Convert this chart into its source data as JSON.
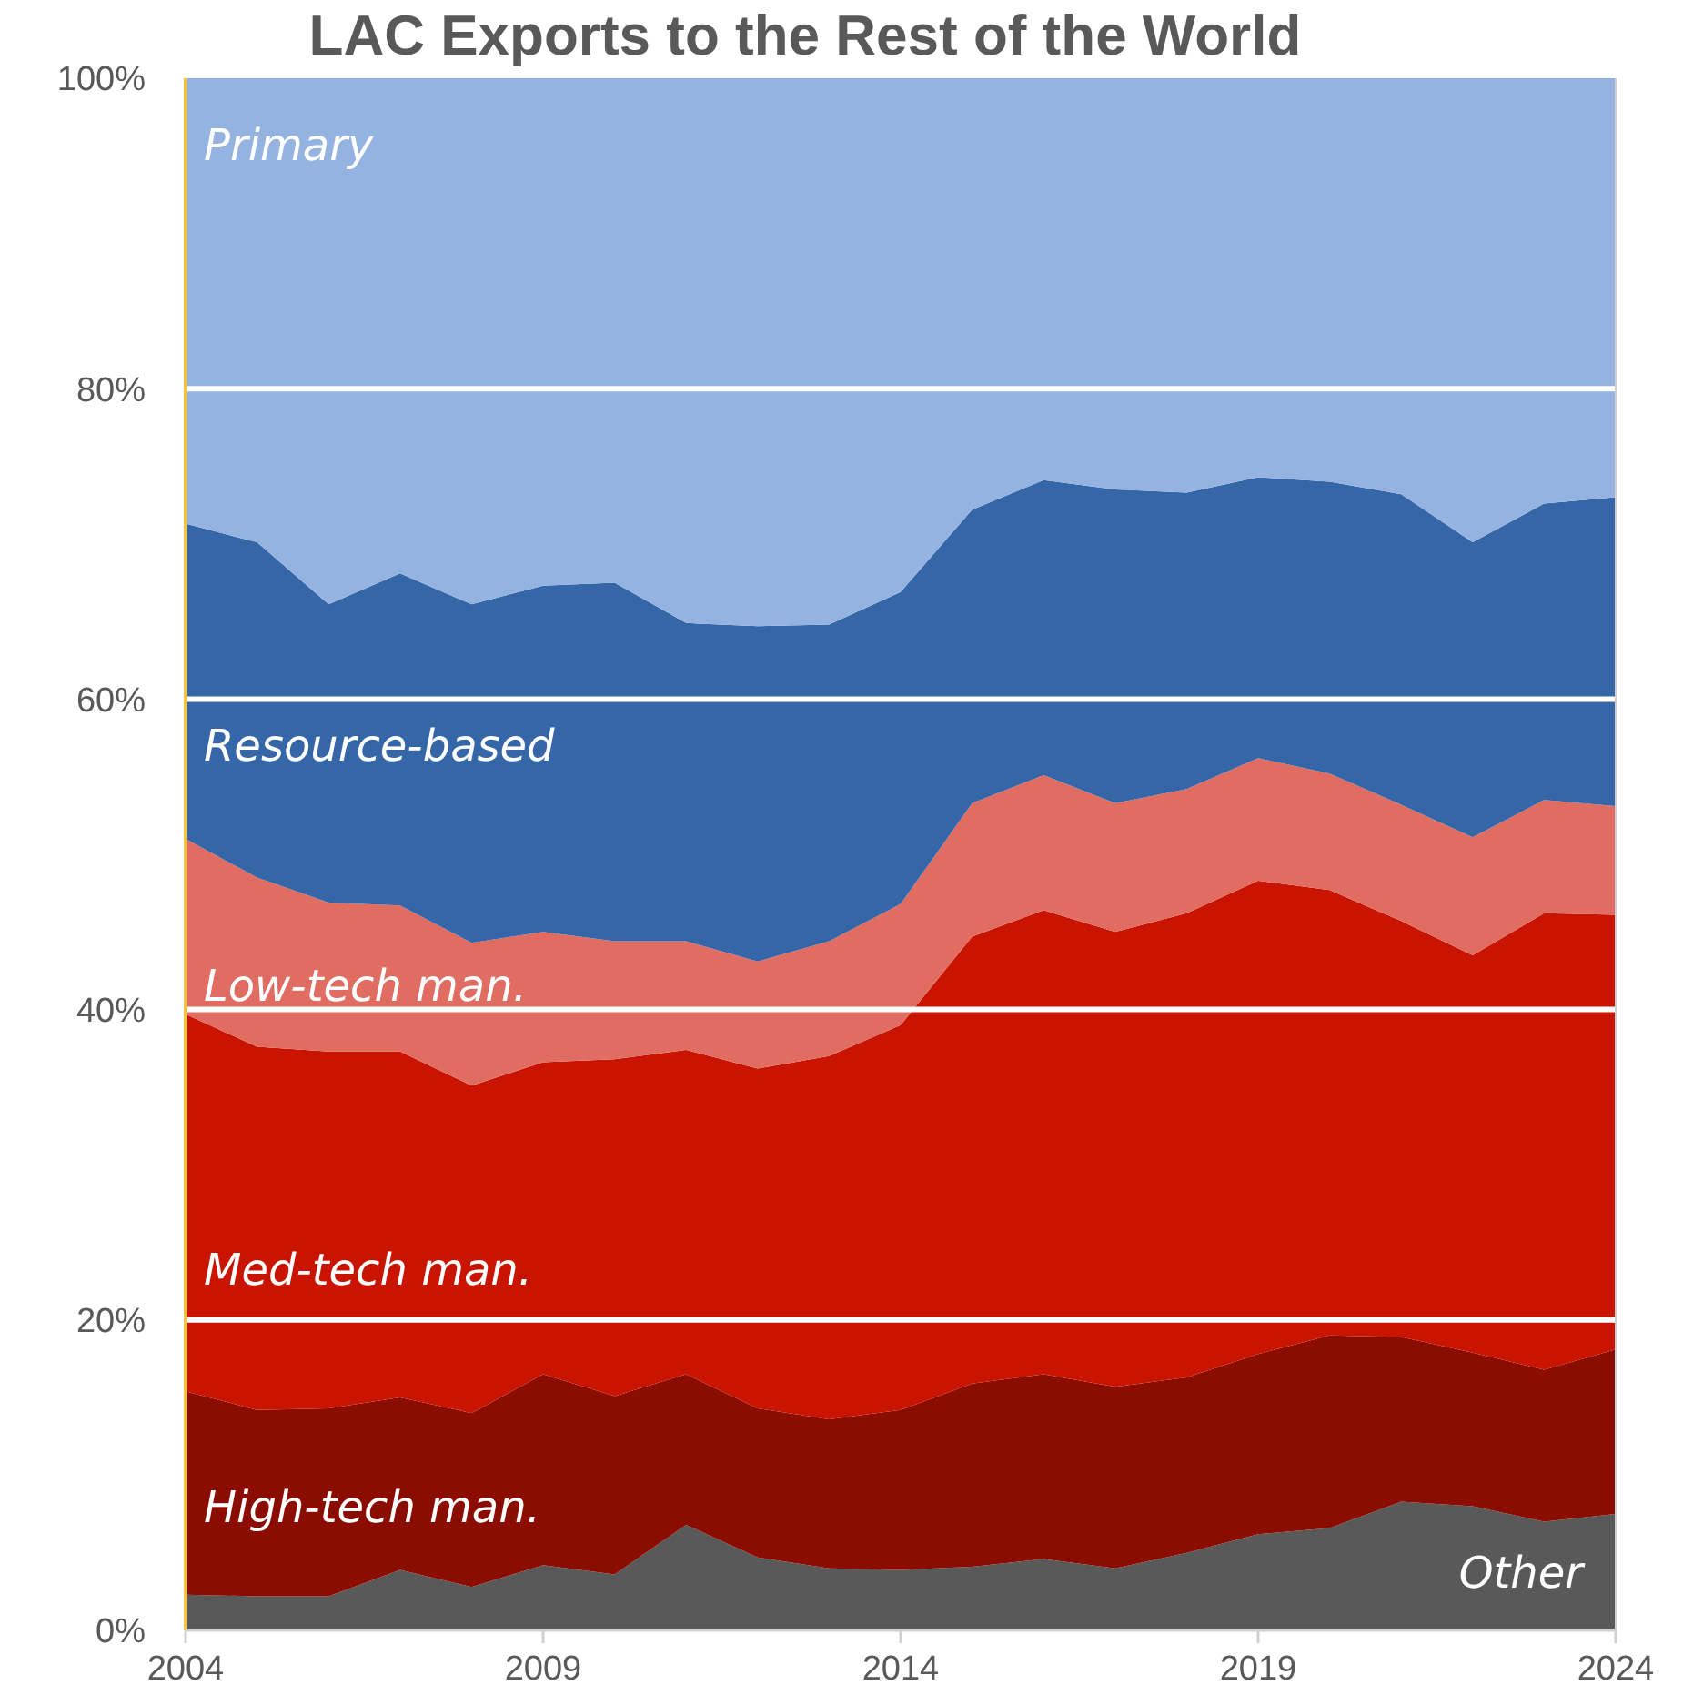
{
  "chart_data": {
    "type": "area",
    "title": "LAC Exports to the Rest of the World",
    "stacked": true,
    "grid": "y",
    "x": [
      2004,
      2005,
      2006,
      2007,
      2008,
      2009,
      2010,
      2011,
      2012,
      2013,
      2014,
      2015,
      2016,
      2017,
      2018,
      2019,
      2020,
      2021,
      2022,
      2023,
      2024
    ],
    "xlim": [
      2004,
      2024
    ],
    "xticks": [
      2004,
      2009,
      2014,
      2019,
      2024
    ],
    "ylim": [
      0,
      100
    ],
    "yticks": [
      {
        "value": 0,
        "label": "0%"
      },
      {
        "value": 20,
        "label": "20%"
      },
      {
        "value": 40,
        "label": "40%"
      },
      {
        "value": 60,
        "label": "60%"
      },
      {
        "value": 80,
        "label": "80%"
      },
      {
        "value": 100,
        "label": "100%"
      }
    ],
    "series": [
      {
        "name": "Other",
        "color": "#595959",
        "values": [
          2.3,
          2.2,
          2.2,
          3.9,
          2.8,
          4.2,
          3.6,
          6.8,
          4.7,
          4.0,
          3.9,
          4.1,
          4.6,
          4.0,
          5.0,
          6.2,
          6.6,
          8.3,
          8.0,
          7.0,
          7.5
        ]
      },
      {
        "name": "High-tech man.",
        "color": "#8b0c00",
        "values": [
          13.1,
          12.0,
          12.1,
          11.1,
          11.2,
          12.3,
          11.5,
          9.7,
          9.6,
          9.6,
          10.3,
          11.8,
          11.9,
          11.7,
          11.3,
          11.6,
          12.4,
          10.6,
          9.9,
          9.8,
          10.6
        ]
      },
      {
        "name": "Med-tech man.",
        "color": "#c81400",
        "values": [
          24.3,
          23.4,
          23.0,
          22.3,
          21.1,
          20.1,
          21.7,
          20.9,
          21.9,
          23.4,
          24.8,
          28.8,
          29.9,
          29.3,
          29.9,
          30.5,
          28.7,
          26.8,
          25.6,
          29.4,
          28.0
        ]
      },
      {
        "name": "Low-tech man.",
        "color": "#e06c62",
        "values": [
          11.3,
          10.9,
          9.6,
          9.4,
          9.2,
          8.4,
          7.6,
          7.0,
          6.9,
          7.4,
          7.8,
          8.6,
          8.7,
          8.3,
          8.0,
          7.9,
          7.5,
          7.5,
          7.6,
          7.3,
          7.0
        ]
      },
      {
        "name": "Resource-based",
        "color": "#3566a8",
        "values": [
          20.3,
          21.6,
          19.2,
          21.4,
          21.8,
          22.3,
          23.1,
          20.5,
          21.6,
          20.4,
          20.1,
          18.9,
          19.0,
          20.2,
          19.1,
          18.1,
          18.8,
          20.0,
          19.0,
          19.1,
          19.9
        ]
      },
      {
        "name": "Primary",
        "color": "#95b3e0",
        "values": [
          28.7,
          29.9,
          33.9,
          31.9,
          33.9,
          32.7,
          32.5,
          35.1,
          35.3,
          35.2,
          33.1,
          27.8,
          25.9,
          26.5,
          26.7,
          25.7,
          26.0,
          26.8,
          29.9,
          27.4,
          27.0
        ]
      }
    ]
  }
}
